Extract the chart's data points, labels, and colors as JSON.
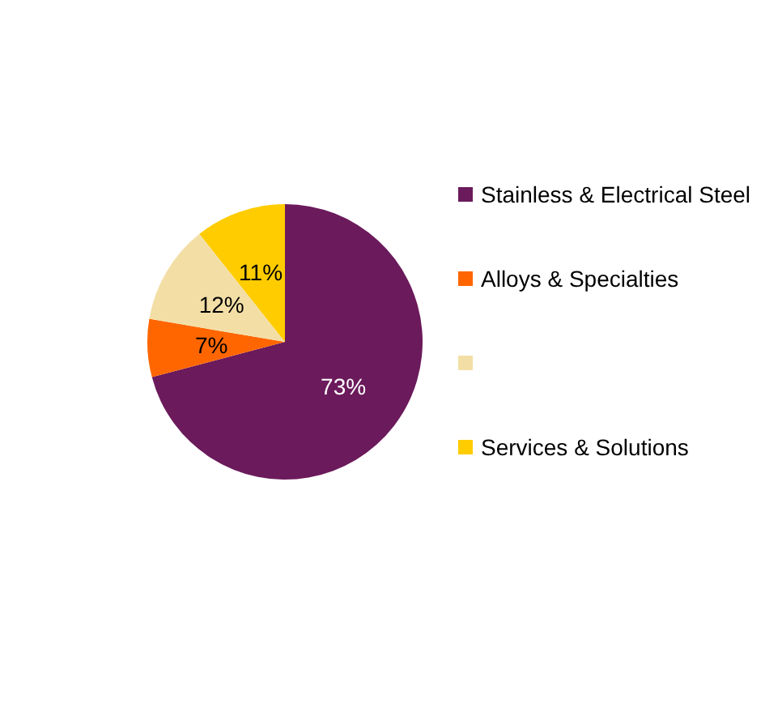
{
  "chart_data": {
    "type": "pie",
    "categories": [
      "Stainless & Electrical Steel",
      "Alloys & Specialties",
      null,
      "Services & Solutions"
    ],
    "values": [
      73,
      7,
      12,
      11
    ],
    "colors": [
      "#6b1a5b",
      "#ff6600",
      "#f3dfa6",
      "#ffcc00"
    ],
    "value_labels": [
      "73%",
      "7%",
      "12%",
      "11%"
    ],
    "legend": "right"
  }
}
